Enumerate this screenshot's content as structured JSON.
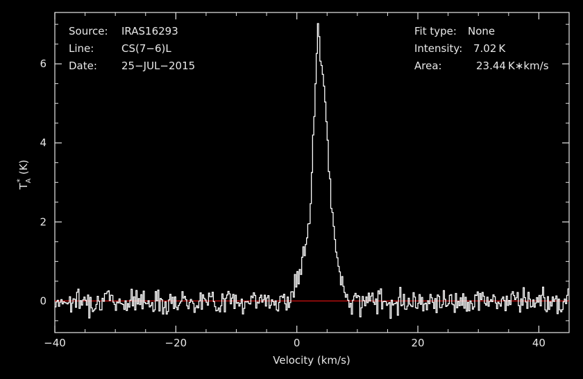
{
  "chart_data": {
    "type": "line",
    "title": "",
    "xlabel": "Velocity (km/s)",
    "ylabel_main": "T",
    "ylabel_sub": "A",
    "ylabel_sup": "*",
    "ylabel_unit": "(K)",
    "xlim": [
      -40,
      45
    ],
    "ylim": [
      -0.8,
      7.3
    ],
    "x_ticks": [
      -40,
      -20,
      0,
      20,
      40
    ],
    "x_tick_labels": [
      "−40",
      "−20",
      "0",
      "20",
      "40"
    ],
    "y_ticks": [
      0,
      2,
      4,
      6
    ],
    "y_tick_labels": [
      "0",
      "2",
      "4",
      "6"
    ],
    "baseline": 0,
    "series": [
      {
        "style": "histogram-step",
        "channel_width_kms": 0.2,
        "peak_points": [
          [
            -1.0,
            0.12
          ],
          [
            -0.6,
            0.25
          ],
          [
            -0.2,
            0.45
          ],
          [
            0.2,
            0.55
          ],
          [
            0.6,
            0.75
          ],
          [
            1.0,
            0.95
          ],
          [
            1.4,
            1.3
          ],
          [
            1.8,
            1.7
          ],
          [
            2.2,
            2.4
          ],
          [
            2.6,
            3.6
          ],
          [
            3.0,
            5.0
          ],
          [
            3.4,
            6.7
          ],
          [
            3.6,
            7.02
          ],
          [
            3.8,
            6.3
          ],
          [
            4.0,
            5.8
          ],
          [
            4.2,
            5.9
          ],
          [
            4.6,
            5.3
          ],
          [
            5.0,
            4.3
          ],
          [
            5.4,
            3.3
          ],
          [
            5.8,
            2.3
          ],
          [
            6.2,
            1.6
          ],
          [
            6.6,
            1.1
          ],
          [
            7.0,
            0.7
          ],
          [
            7.4,
            0.45
          ],
          [
            7.8,
            0.3
          ],
          [
            8.2,
            0.2
          ],
          [
            8.6,
            0.1
          ],
          [
            9.0,
            0.05
          ]
        ],
        "noise_amplitude": 0.15,
        "noise_seed": 7
      }
    ]
  },
  "info_left": [
    {
      "key": "Source:",
      "value": "IRAS16293"
    },
    {
      "key": "Line:",
      "value": "CS(7−6)L"
    },
    {
      "key": "Date:",
      "value": "25−JUL−2015"
    }
  ],
  "info_right": [
    {
      "key": "Fit type:",
      "value": "None"
    },
    {
      "key": "Intensity:",
      "value": "7.02 K"
    },
    {
      "key": "Area:",
      "value": "23.44 K∗km/s"
    }
  ],
  "colors": {
    "background": "#000000",
    "axes": "#e8e8e8",
    "spectrum": "#ffffff",
    "baseline": "#d01010"
  }
}
